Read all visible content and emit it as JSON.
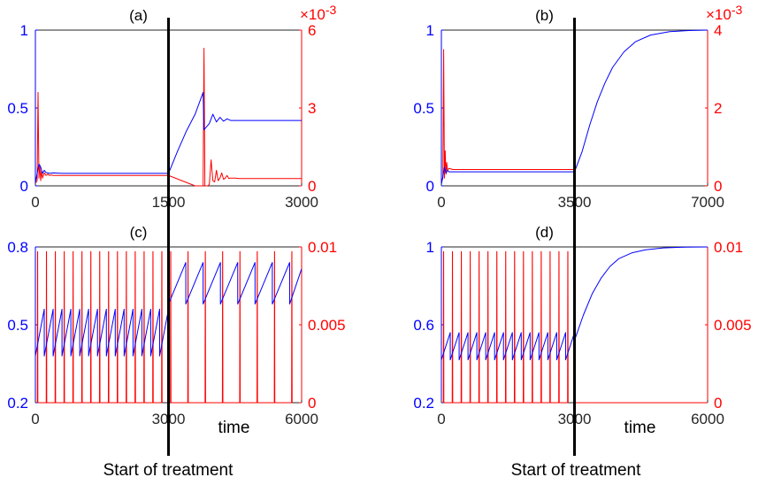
{
  "figure": {
    "treatment_caption": "Start of treatment",
    "colors": {
      "left_axis": "#0000ff",
      "right_axis": "#ff0000",
      "frame": "#262626",
      "marker": "#000000"
    }
  },
  "chart_data": [
    {
      "type": "line",
      "label": "(a)",
      "xlabel": "",
      "xlim": [
        0,
        3000
      ],
      "x_ticks": [
        0,
        1500,
        3000
      ],
      "x_tick_labels": [
        "0",
        "1500",
        "3000"
      ],
      "treatment_start": 1500,
      "left_axis": {
        "lim": [
          0,
          1
        ],
        "ticks": [
          0,
          0.5,
          1
        ],
        "tick_labels": [
          "0",
          "0.5",
          "1"
        ],
        "color": "#0000ff"
      },
      "right_axis": {
        "lim": [
          0,
          6
        ],
        "ticks": [
          0,
          3,
          6
        ],
        "tick_labels": [
          "0",
          "3",
          "6"
        ],
        "exponent_label": "×10",
        "exponent_power": "-3",
        "color": "#ff0000"
      },
      "series": [
        {
          "name": "blue",
          "axis": "left",
          "color": "#0000ff",
          "x": [
            0,
            20,
            40,
            60,
            80,
            100,
            120,
            160,
            200,
            300,
            600,
            1000,
            1500,
            1600,
            1700,
            1800,
            1890,
            1900,
            1960,
            2000,
            2040,
            2080,
            2120,
            2160,
            2200,
            2300,
            2500,
            3000
          ],
          "y": [
            0.02,
            0.08,
            0.14,
            0.12,
            0.08,
            0.1,
            0.085,
            0.08,
            0.083,
            0.08,
            0.08,
            0.08,
            0.08,
            0.22,
            0.35,
            0.46,
            0.6,
            0.36,
            0.4,
            0.46,
            0.41,
            0.44,
            0.415,
            0.43,
            0.42,
            0.42,
            0.42,
            0.42
          ]
        },
        {
          "name": "red",
          "axis": "right",
          "color": "#ff0000",
          "x": [
            0,
            20,
            30,
            40,
            50,
            60,
            70,
            80,
            100,
            120,
            140,
            160,
            180,
            200,
            400,
            1000,
            1500,
            1800,
            1890,
            1900,
            1910,
            1920,
            1940,
            1960,
            1980,
            2000,
            2020,
            2040,
            2060,
            2080,
            2100,
            2120,
            2140,
            2160,
            2180,
            2200,
            2250,
            2300,
            3000
          ],
          "y": [
            0.1,
            0.2,
            3.6,
            0.3,
            0.8,
            0.2,
            0.6,
            0.3,
            0.5,
            0.4,
            0.45,
            0.4,
            0.42,
            0.4,
            0.4,
            0.4,
            0.4,
            0.0,
            0.0,
            5.3,
            0.0,
            0.0,
            0.0,
            0.05,
            1.0,
            0.2,
            0.15,
            0.6,
            0.2,
            0.3,
            0.5,
            0.25,
            0.3,
            0.4,
            0.28,
            0.3,
            0.3,
            0.28,
            0.28
          ]
        }
      ]
    },
    {
      "type": "line",
      "label": "(b)",
      "xlabel": "",
      "xlim": [
        0,
        7000
      ],
      "x_ticks": [
        0,
        3500,
        7000
      ],
      "x_tick_labels": [
        "0",
        "3500",
        "7000"
      ],
      "treatment_start": 3500,
      "left_axis": {
        "lim": [
          0,
          1
        ],
        "ticks": [
          0,
          0.5,
          1
        ],
        "tick_labels": [
          "0",
          "0.5",
          "1"
        ],
        "color": "#0000ff"
      },
      "right_axis": {
        "lim": [
          0,
          4
        ],
        "ticks": [
          0,
          2,
          4
        ],
        "tick_labels": [
          "0",
          "2",
          "4"
        ],
        "exponent_label": "×10",
        "exponent_power": "-3",
        "color": "#ff0000"
      },
      "series": [
        {
          "name": "blue",
          "axis": "left",
          "color": "#0000ff",
          "x": [
            0,
            40,
            80,
            120,
            160,
            200,
            300,
            1000,
            2000,
            3500,
            3700,
            3900,
            4100,
            4300,
            4500,
            4800,
            5100,
            5500,
            6000,
            6500,
            7000
          ],
          "y": [
            0.01,
            0.06,
            0.12,
            0.08,
            0.1,
            0.09,
            0.09,
            0.09,
            0.09,
            0.09,
            0.22,
            0.39,
            0.54,
            0.66,
            0.76,
            0.86,
            0.925,
            0.968,
            0.99,
            0.997,
            1.0
          ]
        },
        {
          "name": "red",
          "axis": "right",
          "color": "#ff0000",
          "x": [
            0,
            40,
            60,
            80,
            100,
            120,
            140,
            160,
            200,
            300,
            1000,
            2000,
            3500
          ],
          "y": [
            0.1,
            0.2,
            3.5,
            0.2,
            0.9,
            0.3,
            0.6,
            0.4,
            0.45,
            0.42,
            0.42,
            0.42,
            0.42
          ]
        }
      ]
    },
    {
      "type": "line",
      "label": "(c)",
      "xlabel": "time",
      "xlim": [
        0,
        6000
      ],
      "x_ticks": [
        0,
        3000,
        6000
      ],
      "x_tick_labels": [
        "0",
        "3000",
        "6000"
      ],
      "treatment_start": 3000,
      "left_axis": {
        "lim": [
          0.2,
          0.8
        ],
        "ticks": [
          0.2,
          0.5,
          0.8
        ],
        "tick_labels": [
          "0.2",
          "0.5",
          "0.8"
        ],
        "color": "#0000ff"
      },
      "right_axis": {
        "lim": [
          0,
          0.01
        ],
        "ticks": [
          0,
          0.005,
          0.01
        ],
        "tick_labels": [
          "0",
          "0.005",
          "0.01"
        ],
        "color": "#ff0000"
      },
      "series": [
        {
          "name": "blue",
          "axis": "left",
          "color": "#0000ff",
          "sawtooth": [
            {
              "from": 0,
              "to": 3000,
              "period": 200,
              "phase": 0,
              "low": 0.38,
              "high": 0.56
            },
            {
              "from": 3000,
              "to": 6000,
              "period": 390,
              "phase": 0,
              "low": 0.58,
              "high": 0.74
            }
          ]
        },
        {
          "name": "red",
          "axis": "right",
          "color": "#ff0000",
          "spike_trains": [
            {
              "from": 50,
              "to": 3000,
              "period": 200,
              "low": 0,
              "high": 0.0097
            },
            {
              "from": 3050,
              "to": 6000,
              "period": 390,
              "low": 0,
              "high": 0.0097
            }
          ]
        }
      ]
    },
    {
      "type": "line",
      "label": "(d)",
      "xlabel": "time",
      "xlim": [
        0,
        6000
      ],
      "x_ticks": [
        0,
        3000,
        6000
      ],
      "x_tick_labels": [
        "0",
        "3000",
        "6000"
      ],
      "treatment_start": 3000,
      "left_axis": {
        "lim": [
          0.2,
          1
        ],
        "ticks": [
          0.2,
          0.6,
          1
        ],
        "tick_labels": [
          "0.2",
          "0.6",
          "1"
        ],
        "color": "#0000ff"
      },
      "right_axis": {
        "lim": [
          0,
          0.01
        ],
        "ticks": [
          0,
          0.005,
          0.01
        ],
        "tick_labels": [
          "0",
          "0.005",
          "0.01"
        ],
        "color": "#ff0000"
      },
      "series": [
        {
          "name": "blue",
          "axis": "left",
          "color": "#0000ff",
          "sawtooth": [
            {
              "from": 0,
              "to": 3000,
              "period": 200,
              "phase": 0,
              "low": 0.42,
              "high": 0.56
            }
          ],
          "x": [
            3000,
            3200,
            3400,
            3600,
            3800,
            4000,
            4300,
            4600,
            5000,
            5500,
            6000
          ],
          "y": [
            0.52,
            0.65,
            0.76,
            0.84,
            0.9,
            0.94,
            0.97,
            0.985,
            0.995,
            0.999,
            1.0
          ]
        },
        {
          "name": "red",
          "axis": "right",
          "color": "#ff0000",
          "spike_trains": [
            {
              "from": 50,
              "to": 3000,
              "period": 200,
              "low": 0,
              "high": 0.0097
            }
          ],
          "x": [
            3000,
            6000
          ],
          "y": [
            0,
            0
          ]
        }
      ]
    }
  ]
}
